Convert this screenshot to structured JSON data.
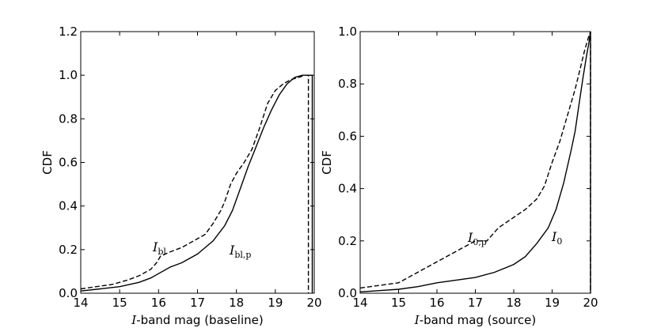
{
  "chart_data": [
    {
      "type": "line",
      "xlabel_italic": "I",
      "xlabel_rest": "-band mag (baseline)",
      "ylabel": "CDF",
      "xlim": [
        14,
        20
      ],
      "ylim": [
        0,
        1.2
      ],
      "xticks": [
        "14",
        "15",
        "16",
        "17",
        "18",
        "19",
        "20"
      ],
      "yticks": [
        "0.0",
        "0.2",
        "0.4",
        "0.6",
        "0.8",
        "1.0",
        "1.2"
      ],
      "grid": false,
      "series": [
        {
          "name": "I_bl",
          "label_main": "I",
          "label_sub": "bl",
          "style": "solid",
          "x": [
            14.0,
            14.5,
            15.0,
            15.5,
            15.8,
            16.0,
            16.3,
            16.6,
            17.0,
            17.4,
            17.7,
            17.9,
            18.1,
            18.3,
            18.5,
            18.7,
            18.9,
            19.1,
            19.3,
            19.5,
            19.7,
            19.9,
            19.95
          ],
          "y": [
            0.01,
            0.02,
            0.03,
            0.05,
            0.07,
            0.09,
            0.12,
            0.14,
            0.18,
            0.24,
            0.31,
            0.38,
            0.48,
            0.58,
            0.67,
            0.76,
            0.84,
            0.91,
            0.96,
            0.99,
            1.0,
            1.0,
            1.0
          ]
        },
        {
          "name": "I_bl,p",
          "label_main": "I",
          "label_sub": "bl,p",
          "style": "dashed",
          "x": [
            14.0,
            14.4,
            14.8,
            15.2,
            15.5,
            15.8,
            15.95,
            16.05,
            16.3,
            16.6,
            16.9,
            17.2,
            17.4,
            17.6,
            17.7,
            17.85,
            18.0,
            18.2,
            18.4,
            18.6,
            18.8,
            19.0,
            19.2,
            19.4,
            19.6,
            19.75,
            19.8,
            19.85
          ],
          "y": [
            0.02,
            0.03,
            0.04,
            0.06,
            0.08,
            0.11,
            0.14,
            0.17,
            0.19,
            0.21,
            0.24,
            0.27,
            0.32,
            0.38,
            0.42,
            0.5,
            0.55,
            0.6,
            0.66,
            0.76,
            0.87,
            0.93,
            0.96,
            0.98,
            0.99,
            1.0,
            1.0,
            1.0
          ]
        }
      ]
    },
    {
      "type": "line",
      "xlabel_italic": "I",
      "xlabel_rest": "-band mag (source)",
      "ylabel": "CDF",
      "xlim": [
        14,
        20
      ],
      "ylim": [
        0,
        1.0
      ],
      "xticks": [
        "14",
        "15",
        "16",
        "17",
        "18",
        "19",
        "20"
      ],
      "yticks": [
        "0.0",
        "0.2",
        "0.4",
        "0.6",
        "0.8",
        "1.0"
      ],
      "grid": false,
      "series": [
        {
          "name": "I_0",
          "label_main": "I",
          "label_sub": "0",
          "style": "solid",
          "x": [
            14.0,
            14.5,
            15.0,
            15.5,
            16.0,
            16.5,
            17.0,
            17.5,
            18.0,
            18.3,
            18.6,
            18.9,
            19.1,
            19.3,
            19.5,
            19.6,
            19.7,
            19.8,
            19.9,
            19.95,
            20.0
          ],
          "y": [
            0.005,
            0.01,
            0.015,
            0.025,
            0.04,
            0.05,
            0.06,
            0.08,
            0.11,
            0.14,
            0.19,
            0.25,
            0.32,
            0.42,
            0.55,
            0.62,
            0.72,
            0.82,
            0.91,
            0.95,
            1.0
          ]
        },
        {
          "name": "I_0,p",
          "label_main": "I",
          "label_sub": "0,p",
          "style": "dashed",
          "x": [
            14.0,
            14.5,
            15.0,
            15.5,
            16.0,
            16.5,
            17.0,
            17.3,
            17.6,
            18.0,
            18.3,
            18.6,
            18.8,
            19.0,
            19.2,
            19.4,
            19.6,
            19.75,
            19.85,
            19.95,
            20.0
          ],
          "y": [
            0.02,
            0.03,
            0.04,
            0.08,
            0.12,
            0.16,
            0.2,
            0.2,
            0.25,
            0.29,
            0.32,
            0.36,
            0.41,
            0.5,
            0.58,
            0.68,
            0.78,
            0.87,
            0.93,
            0.98,
            1.0
          ]
        }
      ]
    }
  ]
}
